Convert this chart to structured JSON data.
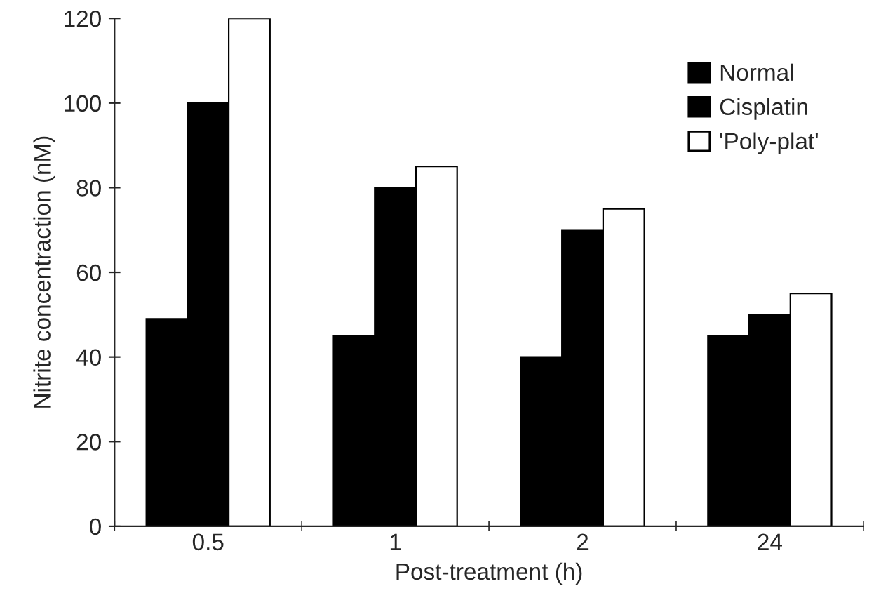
{
  "chart_data": {
    "type": "bar",
    "xlabel": "Post-treatment (h)",
    "ylabel": "Nitrite concentraction (nM)",
    "categories": [
      "0.5",
      "1",
      "2",
      "24"
    ],
    "series": [
      {
        "name": "Normal",
        "color": "#000000",
        "values": [
          49,
          45,
          40,
          45
        ]
      },
      {
        "name": "Cisplatin",
        "color": "#000000",
        "values": [
          100,
          80,
          70,
          50
        ]
      },
      {
        "name": "'Poly-plat'",
        "color": "#ffffff",
        "values": [
          120,
          85,
          75,
          55
        ]
      }
    ],
    "ylim": [
      0,
      120
    ],
    "yticks": [
      0,
      20,
      40,
      60,
      80,
      100,
      120
    ],
    "grid": false,
    "legend": "top right"
  }
}
